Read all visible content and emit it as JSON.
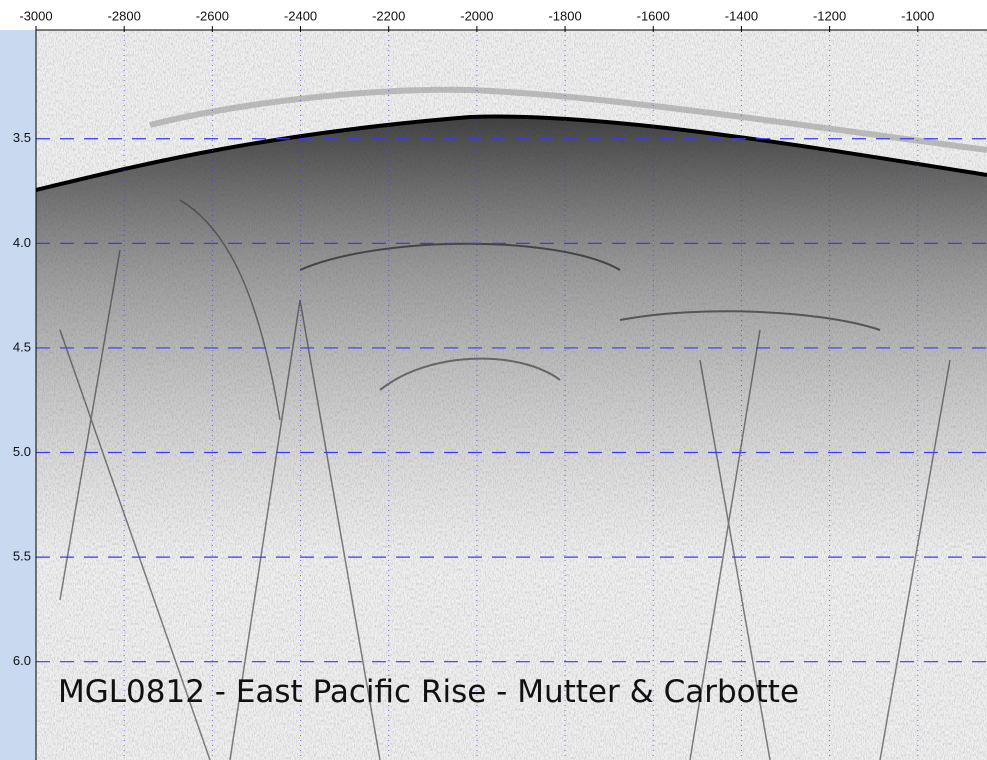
{
  "chart_data": {
    "type": "seismic-section",
    "caption": "MGL0812 - East Pacific Rise - Mutter & Carbotte",
    "xlim": [
      -3000,
      -843
    ],
    "xticks": [
      -3000,
      -2800,
      -2600,
      -2400,
      -2200,
      -2000,
      -1800,
      -1600,
      -1400,
      -1200,
      -1000
    ],
    "ylim": [
      2.98,
      6.47
    ],
    "yticks": [
      3.5,
      {
        "value": 4,
        "label": "4.0"
      },
      4.5,
      {
        "value": 5,
        "label": "5.0"
      },
      5.5,
      {
        "value": 6,
        "label": "6.0"
      }
    ],
    "grid": true,
    "grid_color": "#3a3af0"
  }
}
